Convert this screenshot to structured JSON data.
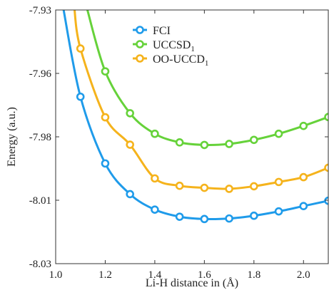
{
  "chart_data": {
    "type": "line",
    "xlabel": "Li-H distance in (Å)",
    "ylabel": "Energy (a.u.)",
    "xlim": [
      1.0,
      2.1
    ],
    "ylim": [
      -8.03,
      -7.93
    ],
    "x_ticks": [
      "1.0",
      "1.2",
      "1.4",
      "1.6",
      "1.8",
      "2.0"
    ],
    "y_ticks": [
      "-7.93",
      "-7.96",
      "-7.98",
      "-8.01",
      "-8.03"
    ],
    "y_tick_values": [
      -7.93,
      -7.955,
      -7.98,
      -8.005,
      -8.03
    ],
    "grid": false,
    "legend_position": "top-center",
    "series": [
      {
        "name": "FCI",
        "name_sub": "",
        "color": "#1f9bea",
        "x": [
          1.1,
          1.2,
          1.3,
          1.4,
          1.5,
          1.6,
          1.7,
          1.8,
          1.9,
          2.0,
          2.1
        ],
        "y": [
          -7.9642,
          -7.9905,
          -8.0026,
          -8.0087,
          -8.0115,
          -8.0124,
          -8.0122,
          -8.0111,
          -8.0094,
          -8.0073,
          -8.0052
        ],
        "curve_start": [
          1.03,
          -7.93
        ]
      },
      {
        "name": "UCCSD",
        "name_sub": "1",
        "color": "#66d23a",
        "x": [
          1.2,
          1.3,
          1.4,
          1.5,
          1.6,
          1.7,
          1.8,
          1.9,
          2.0,
          2.1
        ],
        "y": [
          -7.9542,
          -7.9707,
          -7.9788,
          -7.9822,
          -7.9832,
          -7.9828,
          -7.9812,
          -7.9788,
          -7.9757,
          -7.9722
        ],
        "curve_start": [
          1.125,
          -7.93
        ]
      },
      {
        "name": "OO-UCCD",
        "name_sub": "1",
        "color": "#f5b31c",
        "x": [
          1.1,
          1.2,
          1.3,
          1.4,
          1.5,
          1.6,
          1.7,
          1.8,
          1.9,
          2.0,
          2.1
        ],
        "y": [
          -7.9452,
          -7.9723,
          -7.9831,
          -7.9964,
          -7.9993,
          -8.0001,
          -8.0005,
          -7.9995,
          -7.9978,
          -7.9959,
          -7.9922
        ],
        "curve_start": [
          1.075,
          -7.93
        ]
      }
    ]
  }
}
